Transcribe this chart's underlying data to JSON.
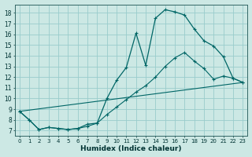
{
  "xlabel": "Humidex (Indice chaleur)",
  "background_color": "#cce8e4",
  "grid_color": "#99cccc",
  "line_color": "#006666",
  "xlim": [
    -0.5,
    23.5
  ],
  "ylim": [
    6.5,
    18.8
  ],
  "yticks": [
    7,
    8,
    9,
    10,
    11,
    12,
    13,
    14,
    15,
    16,
    17,
    18
  ],
  "xticks": [
    0,
    1,
    2,
    3,
    4,
    5,
    6,
    7,
    8,
    9,
    10,
    11,
    12,
    13,
    14,
    15,
    16,
    17,
    18,
    19,
    20,
    21,
    22,
    23
  ],
  "xtick_labels": [
    "0",
    "1",
    "2",
    "3",
    "4",
    "5",
    "6",
    "7",
    "8",
    "9",
    "10",
    "11",
    "12",
    "13",
    "14",
    "15",
    "16",
    "17",
    "18",
    "19",
    "20",
    "21",
    "22",
    "23"
  ],
  "line1_x": [
    0,
    1,
    2,
    3,
    4,
    5,
    6,
    7,
    8,
    9,
    10,
    11,
    12,
    13,
    14,
    15,
    16,
    17,
    18,
    19,
    20,
    21,
    22,
    23
  ],
  "line1_y": [
    8.8,
    8.0,
    7.1,
    7.3,
    7.2,
    7.1,
    7.2,
    7.6,
    7.7,
    10.0,
    11.7,
    12.9,
    16.1,
    13.1,
    17.5,
    18.3,
    18.1,
    17.8,
    16.5,
    15.4,
    14.9,
    13.9,
    11.9,
    11.5
  ],
  "line2_x": [
    0,
    1,
    2,
    3,
    4,
    5,
    6,
    7,
    8,
    9,
    10,
    11,
    12,
    13,
    14,
    15,
    16,
    17,
    18,
    19,
    20,
    21,
    22,
    23
  ],
  "line2_y": [
    8.8,
    8.0,
    7.1,
    7.3,
    7.2,
    7.1,
    7.2,
    7.4,
    7.7,
    8.5,
    9.2,
    9.9,
    10.6,
    11.2,
    12.0,
    13.0,
    13.8,
    14.3,
    13.5,
    12.8,
    11.8,
    12.1,
    11.9,
    11.5
  ],
  "line3_x": [
    0,
    23
  ],
  "line3_y": [
    8.8,
    11.5
  ]
}
